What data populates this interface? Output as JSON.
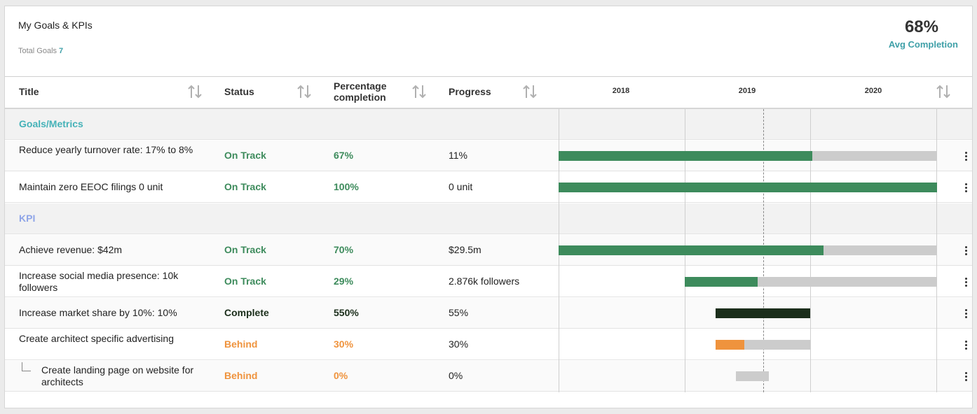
{
  "header": {
    "title": "My Goals & KPIs",
    "total_label": "Total Goals",
    "total_value": "7",
    "avg_value": "68%",
    "avg_label": "Avg Completion"
  },
  "columns": {
    "title": "Title",
    "status": "Status",
    "percentage": [
      "Percentage",
      "completion"
    ],
    "progress": "Progress",
    "years": [
      "2018",
      "2019",
      "2020"
    ]
  },
  "icons": {
    "sort": "sort-arrows-icon",
    "menu": "more-vertical-icon",
    "child": "tree-branch-icon"
  },
  "colors": {
    "on_track": "#3d8b5c",
    "complete": "#1b2e1b",
    "behind": "#ef933d",
    "group_goals": "#45b2b8",
    "group_kpi": "#8fa5e8",
    "track": "#cccccc"
  },
  "groups": [
    {
      "label": "Goals/Metrics",
      "rows": [
        {
          "title": "Reduce yearly turnover rate: 17% to 8%",
          "status": "On Track",
          "pct": "67%",
          "progress": "11%",
          "fill": 0.67
        },
        {
          "title": "Maintain zero EEOC filings 0 unit",
          "status": "On Track",
          "pct": "100%",
          "progress": "0 unit",
          "fill": 1.0
        }
      ]
    },
    {
      "label": "KPI",
      "rows": [
        {
          "title": "Achieve revenue: $42m",
          "status": "On Track",
          "pct": "70%",
          "progress": "$29.5m",
          "fill": 0.7
        },
        {
          "title": "Increase social media presence: 10k followers",
          "status": "On Track",
          "pct": "29%",
          "progress": "2.876k followers",
          "fill": 0.29
        },
        {
          "title": "Increase market share by 10%: 10%",
          "status": "Complete",
          "pct": "550%",
          "progress": "55%",
          "fill": 1.0
        },
        {
          "title": "Create architect specific advertising",
          "status": "Behind",
          "pct": "30%",
          "progress": "30%",
          "fill": 0.3
        },
        {
          "title": "Create landing page on website for architects",
          "status": "Behind",
          "pct": "0%",
          "progress": "0%",
          "fill": 0.0
        }
      ]
    }
  ]
}
